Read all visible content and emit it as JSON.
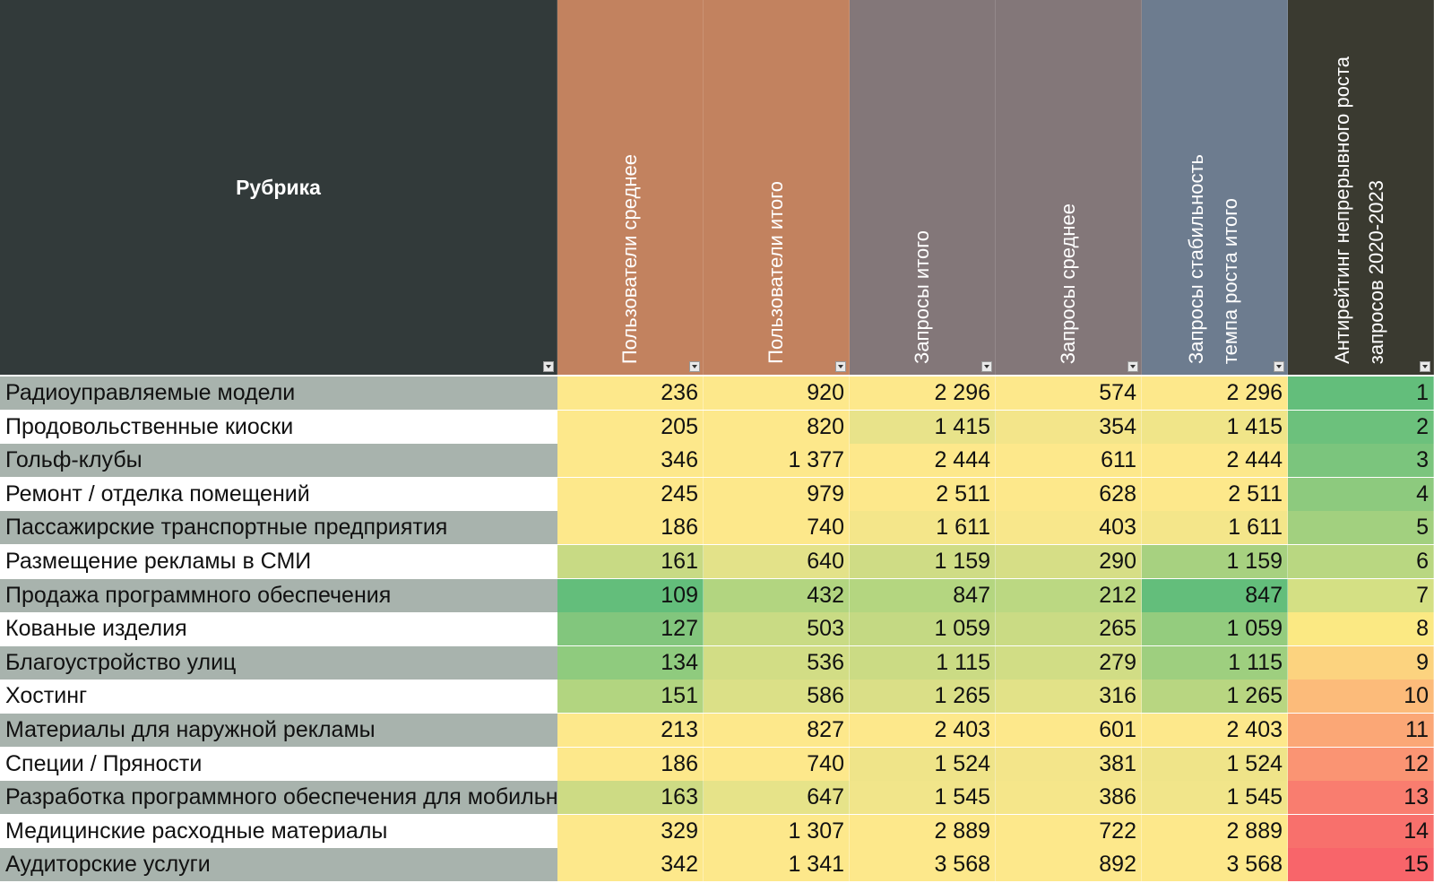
{
  "headers": {
    "rubric": "Рубрика",
    "c1": "Пользователи среднее",
    "c2": "Пользователи итого",
    "c3": "Запросы итого",
    "c4": "Запросы среднее",
    "c5_line1": "Запросы стабильность",
    "c5_line2": "темпа роста итого",
    "c6_line1": "Антирейтинг непрерывного роста",
    "c6_line2": "запросов 2020-2023"
  },
  "colors": {
    "header_rubric": "#323a3a",
    "header_users": "#c2825f",
    "header_requests": "#837779",
    "header_stability": "#6d7c8f",
    "header_antirating": "#3a3a30",
    "row_band_gray": "#a8b3ad",
    "row_band_white": "#ffffff"
  },
  "rows": [
    {
      "name": "Радиоуправляемые модели",
      "c1": "236",
      "c2": "920",
      "c3": "2 296",
      "c4": "574",
      "c5": "2 296",
      "c6": "1",
      "bg": [
        "#fde88b",
        "#fde88b",
        "#fde88b",
        "#fde88b",
        "#fde88b",
        "#63be7b"
      ]
    },
    {
      "name": "Продовольственные киоски",
      "c1": "205",
      "c2": "820",
      "c3": "1 415",
      "c4": "354",
      "c5": "1 415",
      "c6": "2",
      "bg": [
        "#fde88b",
        "#fde88b",
        "#e8e38a",
        "#f3e58a",
        "#f0e589",
        "#6cc17c"
      ]
    },
    {
      "name": "Гольф-клубы",
      "c1": "346",
      "c2": "1 377",
      "c3": "2 444",
      "c4": "611",
      "c5": "2 444",
      "c6": "3",
      "bg": [
        "#fde88b",
        "#fde88b",
        "#fde88b",
        "#fde88b",
        "#fde88b",
        "#7bc57d"
      ]
    },
    {
      "name": "Ремонт / отделка помещений",
      "c1": "245",
      "c2": "979",
      "c3": "2 511",
      "c4": "628",
      "c5": "2 511",
      "c6": "4",
      "bg": [
        "#fde88b",
        "#fde88b",
        "#fde88b",
        "#fde88b",
        "#fde88b",
        "#8dca7e"
      ]
    },
    {
      "name": "Пассажирские транспортные предприятия",
      "c1": "186",
      "c2": "740",
      "c3": "1 611",
      "c4": "403",
      "c5": "1 611",
      "c6": "5",
      "bg": [
        "#fde88b",
        "#fde88b",
        "#f4e68a",
        "#f8e78b",
        "#f4e68a",
        "#a2d07f"
      ]
    },
    {
      "name": "Размещение рекламы в СМИ",
      "c1": "161",
      "c2": "640",
      "c3": "1 159",
      "c4": "290",
      "c5": "1 159",
      "c6": "6",
      "bg": [
        "#c8da84",
        "#e3e289",
        "#cfdc85",
        "#d6de86",
        "#a7d180",
        "#b9d781"
      ]
    },
    {
      "name": "Продажа программного обеспечения",
      "c1": "109",
      "c2": "432",
      "c3": "847",
      "c4": "212",
      "c5": "847",
      "c6": "7",
      "bg": [
        "#63be7b",
        "#b2d580",
        "#b4d680",
        "#bbd882",
        "#63be7b",
        "#d4e084"
      ]
    },
    {
      "name": "Кованые изделия",
      "c1": "127",
      "c2": "503",
      "c3": "1 059",
      "c4": "265",
      "c5": "1 059",
      "c6": "8",
      "bg": [
        "#82c67d",
        "#c9db84",
        "#c4d983",
        "#cadb84",
        "#94cc7e",
        "#fbe983"
      ]
    },
    {
      "name": "Благоустройство улиц",
      "c1": "134",
      "c2": "536",
      "c3": "1 115",
      "c4": "279",
      "c5": "1 115",
      "c6": "9",
      "bg": [
        "#8fcb7e",
        "#d2dd85",
        "#cbdb84",
        "#d1dd85",
        "#9ecf7f",
        "#fcd37f"
      ]
    },
    {
      "name": "Хостинг",
      "c1": "151",
      "c2": "586",
      "c3": "1 265",
      "c4": "316",
      "c5": "1 265",
      "c6": "10",
      "bg": [
        "#b2d580",
        "#dbe087",
        "#dadf87",
        "#e2e288",
        "#b8d681",
        "#fcbb7a"
      ]
    },
    {
      "name": "Материалы для наружной рекламы",
      "c1": "213",
      "c2": "827",
      "c3": "2 403",
      "c4": "601",
      "c5": "2 403",
      "c6": "11",
      "bg": [
        "#fde88b",
        "#fde88b",
        "#fde88b",
        "#fde88b",
        "#fde88b",
        "#fba776"
      ]
    },
    {
      "name": "Специи / Пряности",
      "c1": "186",
      "c2": "740",
      "c3": "1 524",
      "c4": "381",
      "c5": "1 524",
      "c6": "12",
      "bg": [
        "#fde88b",
        "#fde88b",
        "#efe489",
        "#f3e58a",
        "#efe489",
        "#fa9473"
      ]
    },
    {
      "name": "Разработка программного обеспечения для мобильных устройств",
      "c1": "163",
      "c2": "647",
      "c3": "1 545",
      "c4": "386",
      "c5": "1 545",
      "c6": "13",
      "bg": [
        "#cddb84",
        "#e6e389",
        "#f1e58a",
        "#f5e68a",
        "#f1e58a",
        "#f97d6f"
      ]
    },
    {
      "name": "Медицинские расходные материалы",
      "c1": "329",
      "c2": "1 307",
      "c3": "2 889",
      "c4": "722",
      "c5": "2 889",
      "c6": "14",
      "bg": [
        "#fde88b",
        "#fde88b",
        "#fde88b",
        "#fde88b",
        "#fde88b",
        "#f8706c"
      ]
    },
    {
      "name": "Аудиторские услуги",
      "c1": "342",
      "c2": "1 341",
      "c3": "3 568",
      "c4": "892",
      "c5": "3 568",
      "c6": "15",
      "bg": [
        "#fde88b",
        "#fde88b",
        "#fde88b",
        "#fde88b",
        "#fde88b",
        "#f8656a"
      ]
    }
  ]
}
